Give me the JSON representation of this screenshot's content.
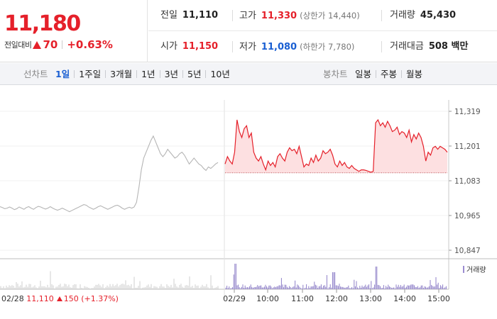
{
  "quote": {
    "price": "11,180",
    "change_label": "전일대비",
    "change_value": "70",
    "change_rate": "+0.63%",
    "stats": {
      "prev_close_label": "전일",
      "prev_close": "11,110",
      "high_label": "고가",
      "high": "11,330",
      "upper_limit": "(상한가 14,440)",
      "volume_label": "거래량",
      "volume": "45,430",
      "open_label": "시가",
      "open": "11,150",
      "low_label": "저가",
      "low": "11,080",
      "lower_limit": "(하한가 7,780)",
      "amount_label": "거래대금",
      "amount": "508 백만"
    },
    "colors": {
      "up": "#e5202a",
      "down": "#1a5fd2"
    }
  },
  "toolbar": {
    "line_label": "선차트",
    "line_periods": [
      "1일",
      "1주일",
      "3개월",
      "1년",
      "3년",
      "5년",
      "10년"
    ],
    "candle_label": "봉차트",
    "candle_periods": [
      "일봉",
      "주봉",
      "월봉"
    ]
  },
  "chart_data": {
    "type": "line",
    "y_ticks": [
      "11,319",
      "11,201",
      "11,083",
      "10,965",
      "10,847"
    ],
    "x_ticks": [
      "02/29",
      "10:00",
      "11:00",
      "12:00",
      "13:00",
      "14:00",
      "15:00"
    ],
    "prev_day_date": "02/28",
    "prev_day_close": "11,110",
    "prev_day_change": "150",
    "prev_day_rate": "(+1.37%)",
    "volume_legend": "거래량",
    "base_price": 11110,
    "ylim": [
      10847,
      11319
    ],
    "prev_day_series": [
      10995,
      10992,
      10988,
      10990,
      10994,
      10990,
      10985,
      10988,
      10994,
      10990,
      10986,
      10992,
      10995,
      10990,
      10986,
      10992,
      10996,
      10994,
      10990,
      10987,
      10990,
      10995,
      10990,
      10986,
      10983,
      10986,
      10990,
      10986,
      10982,
      10978,
      10982,
      10986,
      10990,
      10994,
      10998,
      11002,
      11000,
      10994,
      10990,
      10986,
      10990,
      10995,
      10998,
      10994,
      10990,
      10986,
      10990,
      10994,
      10998,
      11000,
      10996,
      10990,
      10986,
      10990,
      10993,
      10990,
      10994,
      11010,
      11060,
      11120,
      11160,
      11180,
      11200,
      11220,
      11235,
      11215,
      11195,
      11175,
      11165,
      11175,
      11190,
      11180,
      11170,
      11160,
      11165,
      11175,
      11180,
      11170,
      11155,
      11140,
      11150,
      11160,
      11150,
      11140,
      11135,
      11125,
      11118,
      11130,
      11125,
      11132,
      11140,
      11145
    ],
    "today_series": [
      11140,
      11165,
      11150,
      11140,
      11180,
      11290,
      11250,
      11230,
      11260,
      11270,
      11230,
      11245,
      11180,
      11160,
      11150,
      11165,
      11140,
      11120,
      11150,
      11135,
      11145,
      11130,
      11165,
      11175,
      11160,
      11150,
      11180,
      11195,
      11185,
      11190,
      11175,
      11200,
      11165,
      11130,
      11140,
      11135,
      11160,
      11145,
      11170,
      11150,
      11160,
      11185,
      11175,
      11180,
      11190,
      11170,
      11140,
      11130,
      11150,
      11135,
      11145,
      11130,
      11125,
      11135,
      11125,
      11120,
      11115,
      11120,
      11120,
      11118,
      11115,
      11112,
      11115,
      11280,
      11290,
      11270,
      11280,
      11265,
      11285,
      11270,
      11250,
      11255,
      11265,
      11240,
      11250,
      11245,
      11230,
      11255,
      11215,
      11240,
      11225,
      11245,
      11230,
      11200,
      11150,
      11180,
      11170,
      11195,
      11200,
      11190,
      11200,
      11195,
      11190,
      11180
    ]
  }
}
